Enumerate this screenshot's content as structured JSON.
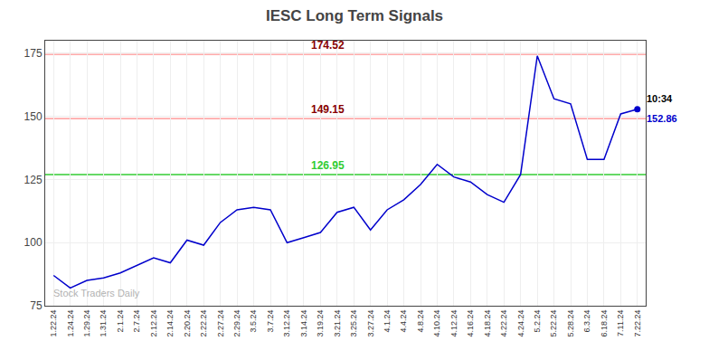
{
  "chart_data": {
    "type": "line",
    "title": "IESC Long Term Signals",
    "categories": [
      "1.22.24",
      "1.24.24",
      "1.29.24",
      "1.31.24",
      "2.1.24",
      "2.7.24",
      "2.12.24",
      "2.14.24",
      "2.20.24",
      "2.22.24",
      "2.27.24",
      "2.29.24",
      "3.5.24",
      "3.7.24",
      "3.12.24",
      "3.14.24",
      "3.19.24",
      "3.21.24",
      "3.25.24",
      "3.27.24",
      "4.1.24",
      "4.4.24",
      "4.8.24",
      "4.10.24",
      "4.12.24",
      "4.16.24",
      "4.18.24",
      "4.22.24",
      "4.24.24",
      "5.2.24",
      "5.22.24",
      "5.28.24",
      "6.3.24",
      "6.18.24",
      "7.11.24",
      "7.22.24"
    ],
    "values": [
      87,
      82,
      85,
      86,
      88,
      91,
      94,
      92,
      101,
      99,
      108,
      113,
      114,
      113,
      100,
      102,
      104,
      112,
      114,
      105,
      113,
      117,
      123,
      131,
      126,
      124,
      119,
      116,
      127,
      174,
      157,
      155,
      133,
      133,
      151,
      152.86
    ],
    "color": "#0000cc",
    "ylim": [
      75,
      180
    ],
    "yticks": [
      75,
      100,
      125,
      150,
      175
    ],
    "grid": true,
    "hlines": [
      {
        "value": 174.52,
        "label": "174.52",
        "color": "#ffaaaa",
        "label_color": "#880000"
      },
      {
        "value": 149.15,
        "label": "149.15",
        "color": "#ffaaaa",
        "label_color": "#880000"
      },
      {
        "value": 126.95,
        "label": "126.95",
        "color": "#33cc33",
        "label_color": "#33cc33"
      }
    ],
    "last_point_labels": [
      {
        "text": "10:34",
        "color": "black"
      },
      {
        "text": "152.86",
        "color": "#0000cc"
      }
    ],
    "watermark": {
      "text": "Stock Traders Daily",
      "color": "gray"
    }
  }
}
